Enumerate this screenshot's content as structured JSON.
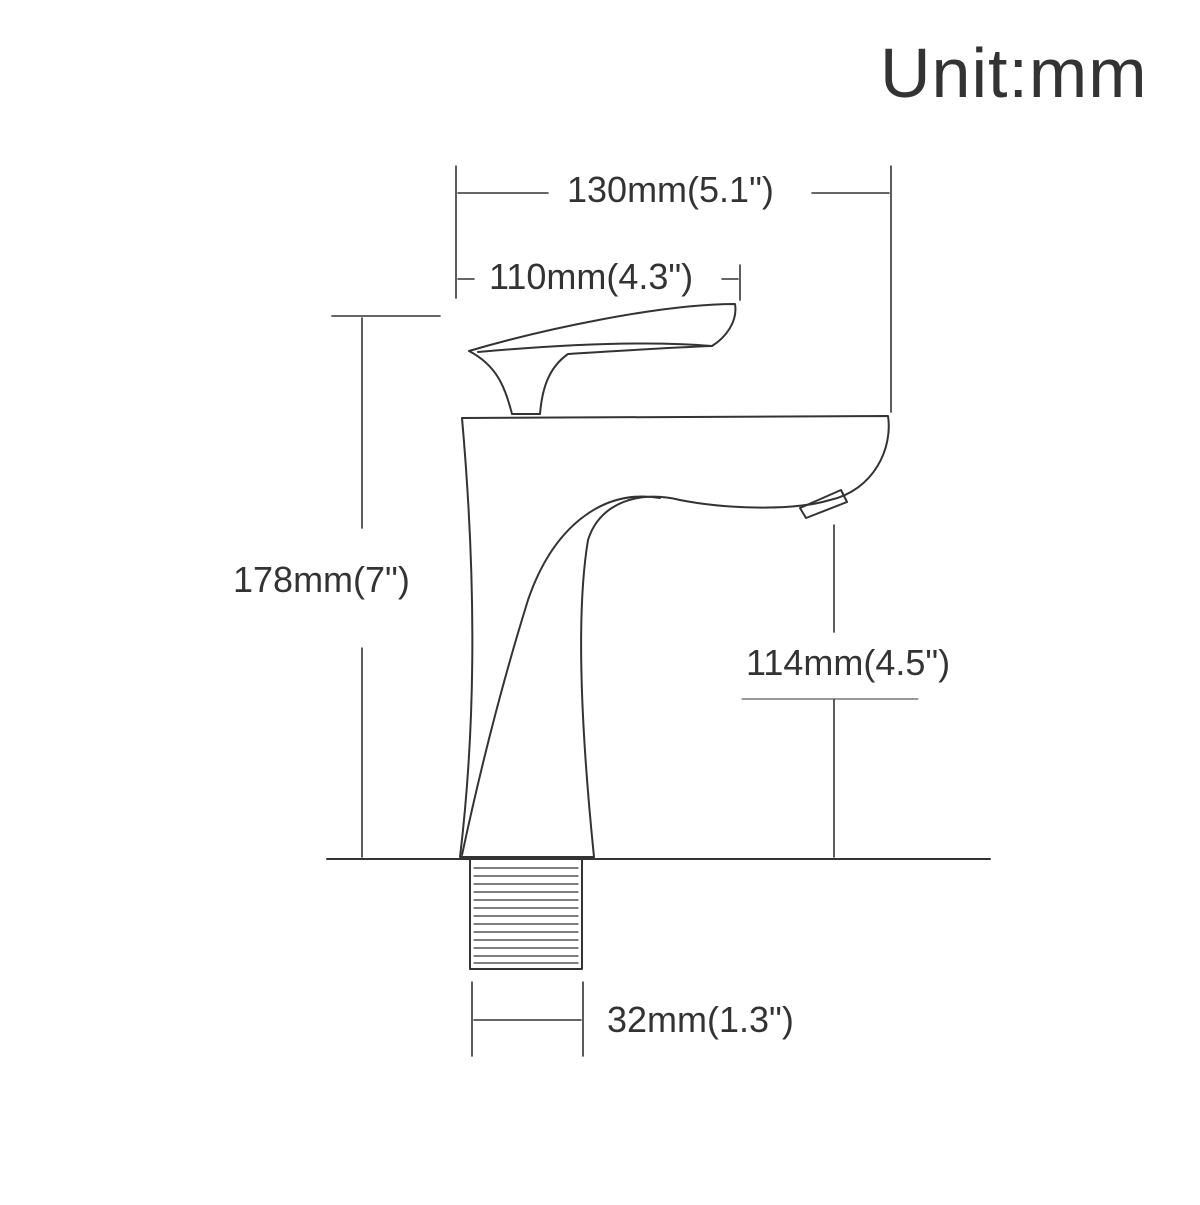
{
  "unit_label": "Unit:mm",
  "dimensions": {
    "total_width": "130mm(5.1\")",
    "handle_width": "110mm(4.3\")",
    "total_height": "178mm(7\")",
    "spout_height": "114mm(4.5\")",
    "thread_diameter": "32mm(1.3\")"
  },
  "colors": {
    "line": "#333333",
    "text": "#333333",
    "background": "#ffffff"
  }
}
